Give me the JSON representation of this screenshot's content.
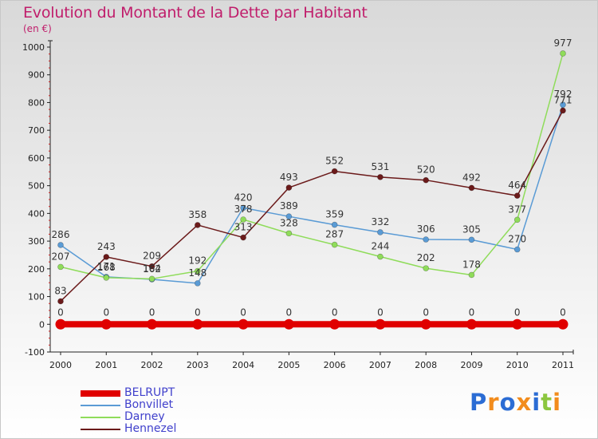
{
  "title": "Evolution du Montant de la Dette par Habitant",
  "unit": "(en €)",
  "logo": {
    "text": "Proxiti",
    "letters": [
      {
        "ch": "P",
        "color": "#2b6cd4"
      },
      {
        "ch": "r",
        "color": "#f28c1d"
      },
      {
        "ch": "o",
        "color": "#2b6cd4"
      },
      {
        "ch": "x",
        "color": "#f28c1d"
      },
      {
        "ch": "i",
        "color": "#2b6cd4"
      },
      {
        "ch": "t",
        "color": "#8cc63f"
      },
      {
        "ch": "i",
        "color": "#f28c1d"
      }
    ]
  },
  "chart_data": {
    "type": "line",
    "title": "Evolution du Montant de la Dette par Habitant",
    "subtitle": "(en €)",
    "x": [
      "2000",
      "2001",
      "2002",
      "2003",
      "2004",
      "2005",
      "2006",
      "2007",
      "2008",
      "2009",
      "2010",
      "2011"
    ],
    "ylim": [
      -100,
      1000
    ],
    "yticks": [
      "-100",
      "0",
      "100",
      "200",
      "300",
      "400",
      "500",
      "600",
      "700",
      "800",
      "900",
      "1000"
    ],
    "grid": false,
    "legend_position": "bottom-left",
    "series": [
      {
        "name": "BELRUPT",
        "color": "#e00000",
        "values": [
          0,
          0,
          0,
          0,
          0,
          0,
          0,
          0,
          0,
          0,
          0,
          0
        ],
        "labels": [
          "0",
          "0",
          "0",
          "0",
          "0",
          "0",
          "0",
          "0",
          "0",
          "0",
          "0",
          "0"
        ]
      },
      {
        "name": "Bonvillet",
        "color": "#5a9bd5",
        "values": [
          286,
          171,
          162,
          148,
          420,
          389,
          359,
          332,
          306,
          305,
          270,
          792
        ],
        "labels": [
          "286",
          "171",
          "162",
          "148",
          "420",
          "389",
          "359",
          "332",
          "306",
          "305",
          "270",
          "792"
        ]
      },
      {
        "name": "Darney",
        "color": "#8fdc5a",
        "values": [
          207,
          168,
          164,
          192,
          378,
          328,
          287,
          244,
          202,
          178,
          377,
          977
        ],
        "labels": [
          "207",
          "168",
          "164",
          "192",
          "378",
          "328",
          "287",
          "244",
          "202",
          "178",
          "377",
          "977"
        ]
      },
      {
        "name": "Hennezel",
        "color": "#6b1a1a",
        "values": [
          83,
          243,
          209,
          358,
          313,
          493,
          552,
          531,
          520,
          492,
          464,
          771
        ],
        "labels": [
          "83",
          "243",
          "209",
          "358",
          "313",
          "493",
          "552",
          "531",
          "520",
          "492",
          "464",
          "771"
        ]
      }
    ]
  }
}
